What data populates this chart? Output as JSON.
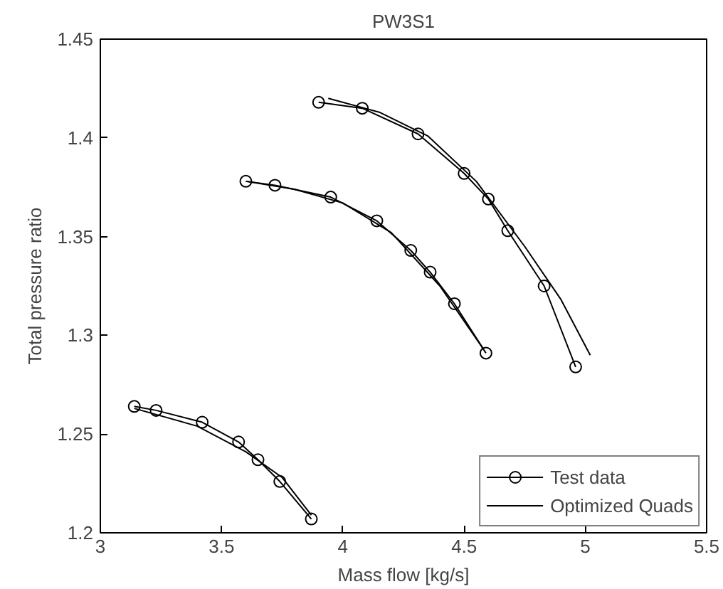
{
  "chart_data": {
    "type": "line",
    "title": "PW3S1",
    "xlabel": "Mass flow [kg/s]",
    "ylabel": "Total pressure ratio",
    "xlim": [
      3,
      5.5
    ],
    "ylim": [
      1.2,
      1.45
    ],
    "xticks": [
      3,
      3.5,
      4,
      4.5,
      5,
      5.5
    ],
    "yticks": [
      1.2,
      1.25,
      1.3,
      1.35,
      1.4,
      1.45
    ],
    "grid": false,
    "legend": "bottom right",
    "series": [
      {
        "name": "Test data",
        "color": "#000000",
        "marker": "circle",
        "line_style": "solid",
        "x": [
          3.9,
          4.08,
          4.31,
          4.5,
          4.6,
          4.68,
          4.83,
          4.96
        ],
        "values": [
          1.418,
          1.415,
          1.402,
          1.382,
          1.369,
          1.353,
          1.325,
          1.284
        ]
      },
      {
        "color": "#000000",
        "marker": "circle",
        "line_style": "solid",
        "x": [
          3.6,
          3.72,
          3.95,
          4.14,
          4.28,
          4.36,
          4.46,
          4.59
        ],
        "values": [
          1.378,
          1.376,
          1.37,
          1.358,
          1.343,
          1.332,
          1.316,
          1.291
        ]
      },
      {
        "color": "#000000",
        "marker": "circle",
        "line_style": "solid",
        "x": [
          3.14,
          3.23,
          3.42,
          3.57,
          3.65,
          3.74,
          3.87
        ],
        "values": [
          1.264,
          1.262,
          1.256,
          1.246,
          1.237,
          1.226,
          1.207
        ]
      },
      {
        "name": "Optimized Quads",
        "color": "#000000",
        "marker": "none",
        "line_style": "solid",
        "x": [
          3.94,
          4.15,
          4.35,
          4.55,
          4.75,
          4.9,
          5.02
        ],
        "values": [
          1.42,
          1.413,
          1.401,
          1.378,
          1.345,
          1.318,
          1.29
        ]
      },
      {
        "color": "#000000",
        "marker": "none",
        "line_style": "solid",
        "x": [
          3.6,
          3.8,
          4.0,
          4.2,
          4.4,
          4.58
        ],
        "values": [
          1.378,
          1.374,
          1.367,
          1.352,
          1.325,
          1.293
        ]
      },
      {
        "color": "#000000",
        "marker": "none",
        "line_style": "solid",
        "x": [
          3.14,
          3.4,
          3.6,
          3.75,
          3.87
        ],
        "values": [
          1.263,
          1.254,
          1.241,
          1.228,
          1.209
        ]
      }
    ]
  }
}
